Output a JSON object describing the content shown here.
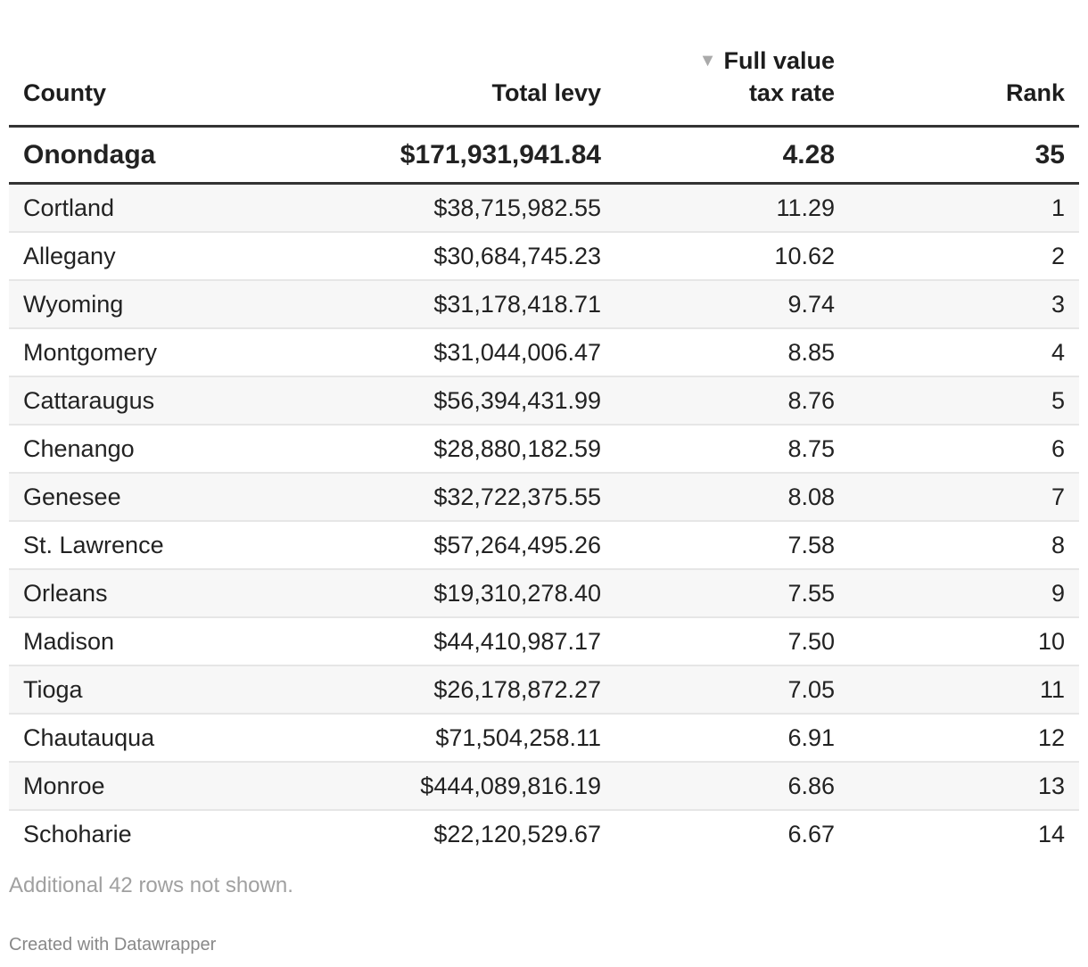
{
  "table": {
    "columns": {
      "county": "County",
      "total_levy": "Total levy",
      "tax_rate_line1": "Full value",
      "tax_rate_line2": "tax rate",
      "rank": "Rank"
    },
    "sort": {
      "column": "Full value tax rate",
      "direction": "descending",
      "icon": "sort-down-triangle-icon"
    },
    "highlight_row": {
      "county": "Onondaga",
      "total_levy": "$171,931,941.84",
      "tax_rate": "4.28",
      "rank": "35"
    },
    "rows": [
      {
        "county": "Cortland",
        "total_levy": "$38,715,982.55",
        "tax_rate": "11.29",
        "rank": "1"
      },
      {
        "county": "Allegany",
        "total_levy": "$30,684,745.23",
        "tax_rate": "10.62",
        "rank": "2"
      },
      {
        "county": "Wyoming",
        "total_levy": "$31,178,418.71",
        "tax_rate": "9.74",
        "rank": "3"
      },
      {
        "county": "Montgomery",
        "total_levy": "$31,044,006.47",
        "tax_rate": "8.85",
        "rank": "4"
      },
      {
        "county": "Cattaraugus",
        "total_levy": "$56,394,431.99",
        "tax_rate": "8.76",
        "rank": "5"
      },
      {
        "county": "Chenango",
        "total_levy": "$28,880,182.59",
        "tax_rate": "8.75",
        "rank": "6"
      },
      {
        "county": "Genesee",
        "total_levy": "$32,722,375.55",
        "tax_rate": "8.08",
        "rank": "7"
      },
      {
        "county": "St. Lawrence",
        "total_levy": "$57,264,495.26",
        "tax_rate": "7.58",
        "rank": "8"
      },
      {
        "county": "Orleans",
        "total_levy": "$19,310,278.40",
        "tax_rate": "7.55",
        "rank": "9"
      },
      {
        "county": "Madison",
        "total_levy": "$44,410,987.17",
        "tax_rate": "7.50",
        "rank": "10"
      },
      {
        "county": "Tioga",
        "total_levy": "$26,178,872.27",
        "tax_rate": "7.05",
        "rank": "11"
      },
      {
        "county": "Chautauqua",
        "total_levy": "$71,504,258.11",
        "tax_rate": "6.91",
        "rank": "12"
      },
      {
        "county": "Monroe",
        "total_levy": "$444,089,816.19",
        "tax_rate": "6.86",
        "rank": "13"
      },
      {
        "county": "Schoharie",
        "total_levy": "$22,120,529.67",
        "tax_rate": "6.67",
        "rank": "14"
      }
    ]
  },
  "footer": {
    "rows_note": "Additional 42 rows not shown.",
    "credit": "Created with Datawrapper"
  },
  "colors": {
    "stripe": "#f7f7f7",
    "rule": "#333333",
    "muted": "#a0a0a0"
  }
}
